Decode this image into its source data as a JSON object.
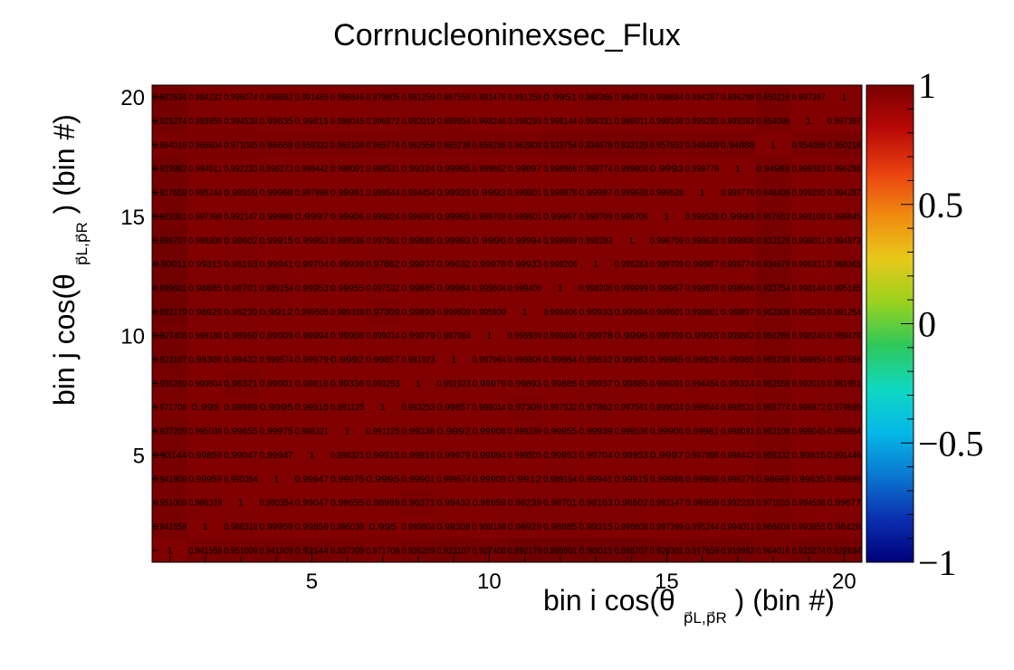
{
  "chart_data": {
    "type": "heatmap",
    "title": "Corrnucleoninexsec_Flux",
    "xlabel": "bin i cos(θ",
    "xlabel_sub": "p⃗L,p⃗R",
    "xlabel_tail": ") (bin #)",
    "ylabel": "bin j cos(θ",
    "ylabel_sub": "p⃗L,p⃗R",
    "ylabel_tail": ") (bin #)",
    "nx": 20,
    "ny": 20,
    "xlim": [
      0.5,
      20.5
    ],
    "ylim": [
      0.5,
      20.5
    ],
    "x_ticks": [
      5,
      10,
      15,
      20
    ],
    "y_ticks": [
      5,
      10,
      15,
      20
    ],
    "z_range": [
      -1,
      1
    ],
    "z_ticks": [
      {
        "value": 1,
        "label": "1"
      },
      {
        "value": 0.5,
        "label": "0.5"
      },
      {
        "value": 0,
        "label": "0"
      },
      {
        "value": -0.5,
        "label": "−0.5"
      },
      {
        "value": -1,
        "label": "−1"
      }
    ],
    "cell_color": "#8a0000",
    "palette": [
      "#00007a",
      "#0a2fb0",
      "#0a78d0",
      "#05b8e8",
      "#10d8c0",
      "#2ec85a",
      "#9ad21e",
      "#e8c81a",
      "#f08a10",
      "#e84010",
      "#b80808",
      "#7a0000"
    ],
    "rows_top_to_bottom": [
      [
        0.922634,
        0.984232,
        0.996074,
        0.998862,
        0.991465,
        0.996846,
        0.979805,
        0.981259,
        0.997559,
        0.991476,
        0.991259,
        0.9951,
        0.988366,
        0.994878,
        0.998884,
        0.994287,
        0.996288,
        0.950216,
        0.997397,
        1
      ],
      [
        0.925274,
        0.993855,
        0.994538,
        0.99635,
        0.99815,
        0.999045,
        0.996872,
        0.992019,
        0.989954,
        0.998246,
        0.996293,
        0.998144,
        0.996331,
        0.998011,
        0.999108,
        0.999285,
        0.999383,
        0.954086,
        1,
        0.997397
      ],
      [
        0.964016,
        0.966604,
        0.971035,
        0.96669,
        0.959332,
        0.963108,
        0.965774,
        0.962558,
        0.965238,
        0.956286,
        0.962808,
        0.933754,
        0.934679,
        0.933129,
        0.957652,
        0.948409,
        0.94988,
        1,
        0.954086,
        0.950218
      ],
      [
        0.919982,
        0.994011,
        0.992233,
        0.996273,
        0.998442,
        0.998091,
        0.998531,
        0.99324,
        0.99985,
        0.999862,
        0.99897,
        0.998966,
        0.999774,
        0.999808,
        0.9993,
        0.999776,
        1,
        0.94988,
        0.999383,
        0.996288
      ],
      [
        0.917659,
        0.995244,
        0.98959,
        0.99968,
        0.997898,
        0.99981,
        0.998544,
        0.994454,
        0.99929,
        0.9993,
        0.999801,
        0.999878,
        0.99987,
        0.999638,
        0.999528,
        1,
        0.999776,
        0.948409,
        0.999285,
        0.994287
      ],
      [
        0.929301,
        0.997399,
        0.992147,
        0.99988,
        0.9997,
        0.99906,
        0.999024,
        0.996091,
        0.99985,
        0.999709,
        0.999601,
        0.99967,
        0.999709,
        0.996706,
        1,
        0.999528,
        0.9993,
        0.957652,
        0.999108,
        0.998845
      ],
      [
        0.898707,
        0.998808,
        0.98602,
        0.99915,
        0.99953,
        0.999536,
        0.997561,
        0.99885,
        0.99983,
        0.9996,
        0.99994,
        0.999999,
        0.998283,
        1,
        0.996706,
        0.999638,
        0.999808,
        0.933129,
        0.998011,
        0.994873
      ],
      [
        0.90011,
        0.99315,
        0.98163,
        0.99941,
        0.99704,
        0.99939,
        0.97862,
        0.99937,
        0.99632,
        0.99978,
        0.99933,
        0.998206,
        1,
        0.998283,
        0.999709,
        0.99987,
        0.999774,
        0.934679,
        0.996331,
        0.988365
      ],
      [
        0.899601,
        0.98885,
        0.98701,
        0.989154,
        0.99953,
        0.99955,
        0.997532,
        0.99885,
        0.99984,
        0.999604,
        0.999406,
        1,
        0.998206,
        0.999999,
        0.99967,
        0.999878,
        0.998966,
        0.933754,
        0.998144,
        0.995165
      ],
      [
        0.892179,
        0.98929,
        0.98239,
        0.9912,
        0.999505,
        0.999339,
        0.97309,
        0.99893,
        0.999609,
        0.995939,
        1,
        0.999406,
        0.99933,
        0.99994,
        0.999601,
        0.999801,
        0.99897,
        0.962808,
        0.996293,
        0.991254
      ],
      [
        0.927408,
        0.998188,
        0.98959,
        0.99909,
        0.99994,
        0.99908,
        0.999014,
        0.99979,
        0.997964,
        1,
        0.995939,
        0.999604,
        0.99978,
        0.9996,
        0.999709,
        0.9993,
        0.999862,
        0.956286,
        0.998246,
        0.989476
      ],
      [
        0.923107,
        0.99308,
        0.99432,
        0.999574,
        0.99979,
        0.9992,
        0.99857,
        0.991923,
        1,
        0.997964,
        0.999609,
        0.99984,
        0.99632,
        0.99983,
        0.99985,
        0.99929,
        0.99985,
        0.965238,
        0.989954,
        0.997556
      ],
      [
        0.936269,
        0.999804,
        0.96371,
        0.99901,
        0.99816,
        0.99336,
        0.993253,
        1,
        0.991923,
        0.99979,
        0.99893,
        0.99885,
        0.99937,
        0.99885,
        0.996091,
        0.994454,
        0.99324,
        0.962558,
        0.992019,
        0.981951
      ],
      [
        0.971708,
        0.995,
        0.98989,
        0.9995,
        0.99915,
        0.991125,
        1,
        0.993253,
        0.99857,
        0.999014,
        0.97309,
        0.997532,
        0.97862,
        0.997561,
        0.999024,
        0.998544,
        0.998531,
        0.965774,
        0.996872,
        0.979865
      ],
      [
        0.937209,
        0.995039,
        0.99655,
        0.99975,
        0.998321,
        1,
        0.991125,
        0.99336,
        0.9992,
        0.99908,
        0.999339,
        0.99955,
        0.99939,
        0.999536,
        0.99906,
        0.99981,
        0.998091,
        0.963108,
        0.999045,
        0.999864
      ],
      [
        0.93144,
        0.99859,
        0.99047,
        0.99947,
        1,
        0.998321,
        0.99915,
        0.99816,
        0.99979,
        0.99994,
        0.999505,
        0.99953,
        0.99704,
        0.99953,
        0.9997,
        0.997898,
        0.998442,
        0.959332,
        0.99815,
        0.991446
      ],
      [
        0.941909,
        0.99959,
        0.990354,
        1,
        0.99947,
        0.99975,
        0.9995,
        0.99901,
        0.999574,
        0.99909,
        0.9912,
        0.989154,
        0.99941,
        0.99915,
        0.99988,
        0.99968,
        0.996273,
        0.96669,
        0.99635,
        0.998889
      ],
      [
        0.951009,
        0.986319,
        1,
        0.990354,
        0.99047,
        0.99655,
        0.98989,
        0.96371,
        0.99432,
        0.98959,
        0.98239,
        0.98701,
        0.98163,
        0.98602,
        0.992147,
        0.98959,
        0.992233,
        0.971035,
        0.994538,
        0.99677
      ],
      [
        0.941559,
        1,
        0.986319,
        0.99959,
        0.99859,
        0.995039,
        0.995,
        0.999804,
        0.99308,
        0.998188,
        0.98929,
        0.98885,
        0.99315,
        0.998808,
        0.997399,
        0.995244,
        0.994011,
        0.966604,
        0.993855,
        0.98428
      ],
      [
        1,
        0.941559,
        0.951009,
        0.941909,
        0.93144,
        0.937209,
        0.971708,
        0.936269,
        0.923107,
        0.927408,
        0.892179,
        0.899601,
        0.90011,
        0.898707,
        0.929301,
        0.917659,
        0.919982,
        0.964016,
        0.925274,
        0.922634
      ]
    ]
  }
}
